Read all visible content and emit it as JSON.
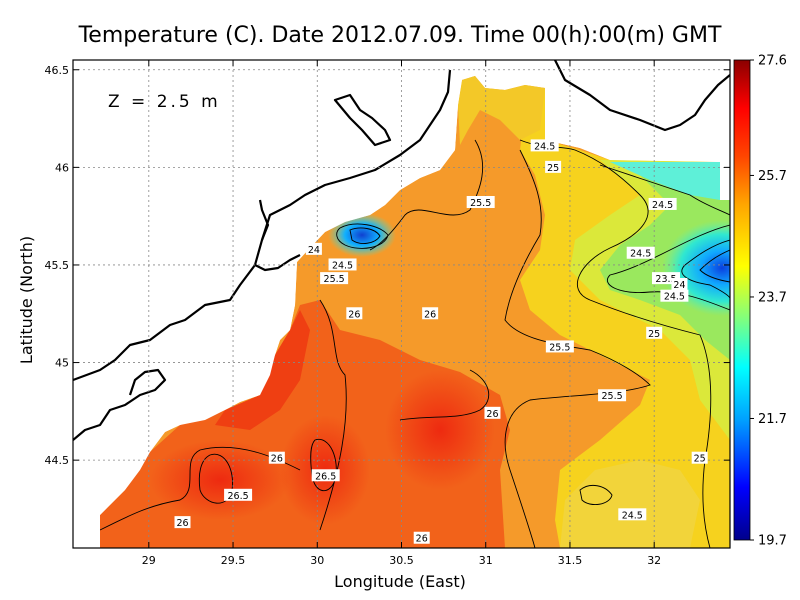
{
  "chart_data": {
    "type": "heatmap",
    "title": "Temperature (C). Date 2012.07.09. Time 00(h):00(m) GMT",
    "xlabel": "Longitude (East)",
    "ylabel": "Latitude (North)",
    "xlim": [
      28.55,
      32.45
    ],
    "ylim": [
      44.05,
      46.55
    ],
    "x_ticks": [
      29,
      29.5,
      30,
      30.5,
      31,
      31.5,
      32
    ],
    "x_tick_labels": [
      "29",
      "29.5",
      "30",
      "30.5",
      "31",
      "31.5",
      "32"
    ],
    "y_ticks": [
      44.5,
      45,
      45.5,
      46,
      46.5
    ],
    "y_tick_labels": [
      "44.5",
      "45",
      "45.5",
      "46",
      "46.5"
    ],
    "grid": true,
    "annotation": "Z = 2.5 m",
    "colorbar": {
      "range": [
        19.7,
        27.6
      ],
      "tick_values": [
        27.6,
        25.7,
        23.7,
        21.7,
        19.7
      ],
      "tick_labels": [
        "27.6",
        "25.7",
        "23.7",
        "21.7",
        "19.7"
      ],
      "colors": [
        "#00008b",
        "#0000ff",
        "#00a0ff",
        "#00ffff",
        "#7fff7f",
        "#ffff00",
        "#ffa500",
        "#ff4500",
        "#ff0000",
        "#8b0000"
      ]
    },
    "contour_labels": [
      {
        "text": "24.5",
        "lon": 31.35,
        "lat": 46.11
      },
      {
        "text": "25",
        "lon": 31.4,
        "lat": 46.0
      },
      {
        "text": "25.5",
        "lon": 30.97,
        "lat": 45.82
      },
      {
        "text": "24.5",
        "lon": 32.05,
        "lat": 45.81
      },
      {
        "text": "24",
        "lon": 29.98,
        "lat": 45.58
      },
      {
        "text": "24.5",
        "lon": 30.15,
        "lat": 45.5
      },
      {
        "text": "25.5",
        "lon": 30.1,
        "lat": 45.43
      },
      {
        "text": "24.5",
        "lon": 31.92,
        "lat": 45.56
      },
      {
        "text": "23.5",
        "lon": 32.07,
        "lat": 45.43
      },
      {
        "text": "24",
        "lon": 32.15,
        "lat": 45.4
      },
      {
        "text": "24.5",
        "lon": 32.12,
        "lat": 45.34
      },
      {
        "text": "26",
        "lon": 30.22,
        "lat": 45.25
      },
      {
        "text": "26",
        "lon": 30.67,
        "lat": 45.25
      },
      {
        "text": "25",
        "lon": 32.0,
        "lat": 45.15
      },
      {
        "text": "25.5",
        "lon": 31.44,
        "lat": 45.08
      },
      {
        "text": "25.5",
        "lon": 31.75,
        "lat": 44.83
      },
      {
        "text": "26",
        "lon": 31.04,
        "lat": 44.74
      },
      {
        "text": "25",
        "lon": 32.27,
        "lat": 44.51
      },
      {
        "text": "26",
        "lon": 29.76,
        "lat": 44.51
      },
      {
        "text": "26.5",
        "lon": 30.05,
        "lat": 44.42
      },
      {
        "text": "26.5",
        "lon": 29.53,
        "lat": 44.32
      },
      {
        "text": "24.5",
        "lon": 31.87,
        "lat": 44.22
      },
      {
        "text": "26",
        "lon": 29.2,
        "lat": 44.18
      },
      {
        "text": "26",
        "lon": 30.62,
        "lat": 44.1
      }
    ]
  }
}
